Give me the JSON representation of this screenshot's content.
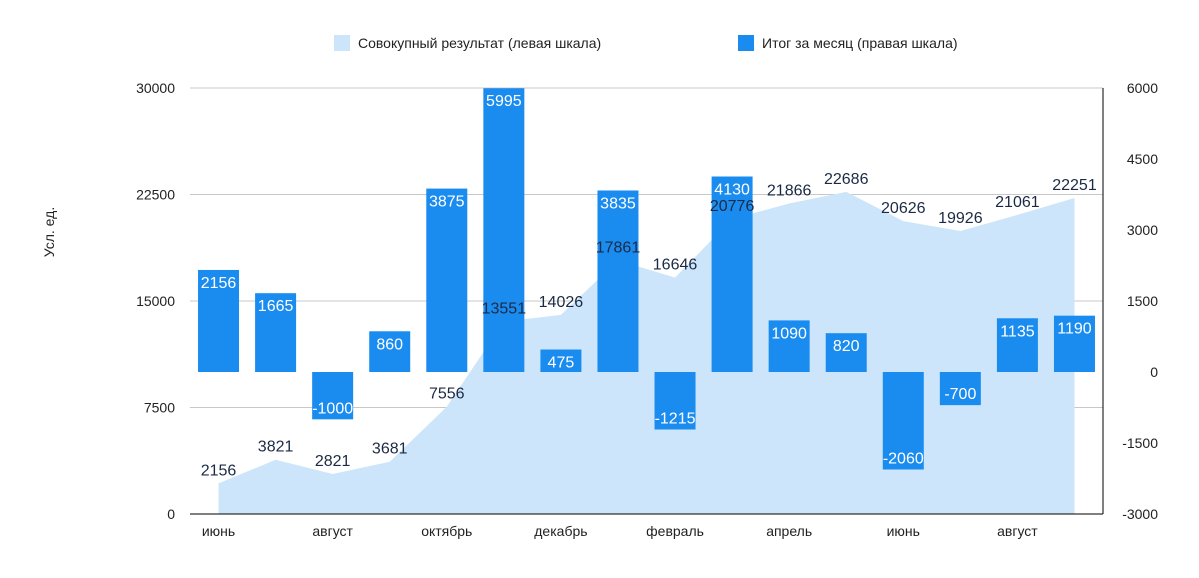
{
  "chart_data": {
    "type": "bar",
    "categories": [
      "июнь",
      "",
      "август",
      "",
      "октябрь",
      "",
      "декабрь",
      "",
      "февраль",
      "",
      "апрель",
      "",
      "июнь",
      "",
      "август",
      ""
    ],
    "ylabel": "Усл. ед.",
    "ylim_left": [
      0,
      30000
    ],
    "yticks_left": [
      0,
      7500,
      15000,
      22500,
      30000
    ],
    "ylim_right": [
      -3000,
      6000
    ],
    "yticks_right": [
      -3000,
      -1500,
      0,
      1500,
      3000,
      4500,
      6000
    ],
    "grid": true,
    "legend_position": "top",
    "series": [
      {
        "name": "Совокупный результат (левая шкала)",
        "type": "area",
        "axis": "left",
        "color": "#cce5fa",
        "values": [
          2156,
          3821,
          2821,
          3681,
          7556,
          13551,
          14026,
          17861,
          16646,
          20776,
          21866,
          22686,
          20626,
          19926,
          21061,
          22251
        ]
      },
      {
        "name": "Итог за месяц (правая шкала)",
        "type": "bar",
        "axis": "right",
        "color": "#1a8cf0",
        "values": [
          2156,
          1665,
          -1000,
          860,
          3875,
          5995,
          475,
          3835,
          -1215,
          4130,
          1090,
          820,
          -2060,
          -700,
          1135,
          1190
        ]
      }
    ]
  }
}
